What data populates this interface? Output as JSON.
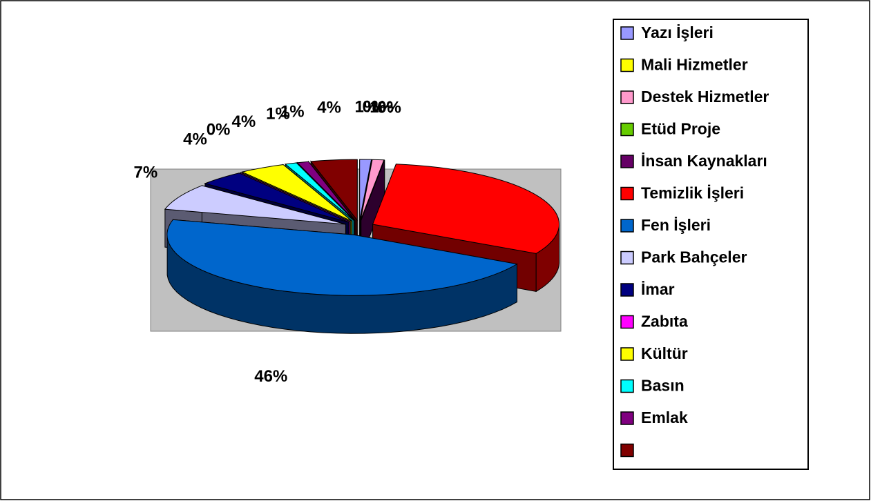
{
  "chart_data": {
    "type": "pie",
    "categories": [
      "Yazı İşleri",
      "Mali Hizmetler",
      "Destek Hizmetler",
      "Etüd Proje",
      "İnsan Kaynakları",
      "Temizlik İşleri",
      "Fen İşleri",
      "Park Bahçeler",
      "İmar",
      "Zabıta",
      "Kültür",
      "Basın",
      "Emlak",
      null
    ],
    "values": [
      1,
      0,
      1,
      0,
      0,
      31,
      46,
      7,
      4,
      0,
      4,
      1,
      1,
      4
    ],
    "value_labels": [
      "1%",
      "0%",
      "1%",
      "0%",
      "0%",
      null,
      "46%",
      "7%",
      "4%",
      "0%",
      "4%",
      "1%",
      "1%",
      "4%"
    ],
    "colors": [
      "#9999ff",
      "#ffff00",
      "#ff99cc",
      "#66cc00",
      "#660066",
      "#ff0000",
      "#0066cc",
      "#ccccff",
      "#000080",
      "#ff00ff",
      "#ffff00",
      "#00ffff",
      "#800080",
      "#800000"
    ],
    "legend": "right"
  }
}
